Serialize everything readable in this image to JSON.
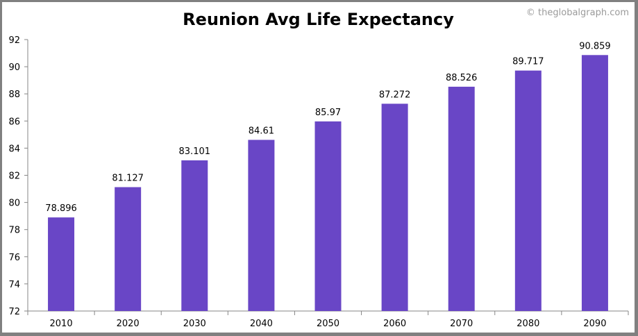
{
  "chart_data": {
    "type": "bar",
    "title": "Reunion Avg Life Expectancy",
    "credit": "© theglobalgraph.com",
    "categories": [
      "2010",
      "2020",
      "2030",
      "2040",
      "2050",
      "2060",
      "2070",
      "2080",
      "2090"
    ],
    "values": [
      78.896,
      81.127,
      83.101,
      84.61,
      85.97,
      87.272,
      88.526,
      89.717,
      90.859
    ],
    "value_labels": [
      "78.896",
      "81.127",
      "83.101",
      "84.61",
      "85.97",
      "87.272",
      "88.526",
      "89.717",
      "90.859"
    ],
    "xlabel": "",
    "ylabel": "",
    "ylim": [
      72,
      92
    ],
    "yticks": [
      72,
      74,
      76,
      78,
      80,
      82,
      84,
      86,
      88,
      90,
      92
    ],
    "grid": false,
    "bar_color": "#6946C6"
  }
}
